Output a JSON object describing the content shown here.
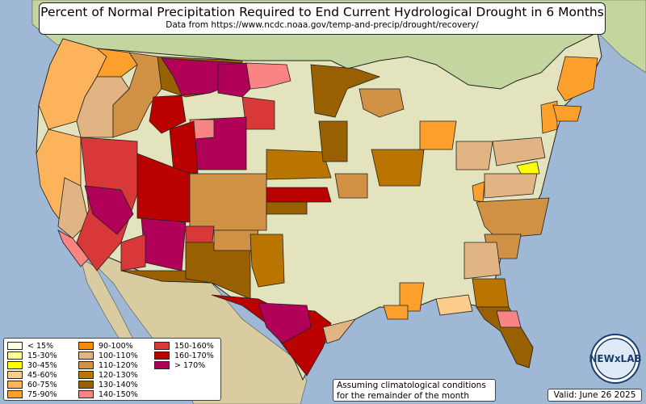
{
  "title": "Percent of Normal Precipitation Required to End Current Hydrological Drought in 6 Months",
  "subtitle": "Data from https://www.ncdc.noaa.gov/temp-and-precip/drought/recovery/",
  "note": {
    "line1": "Assuming climatological conditions",
    "line2": "for the remainder of the month"
  },
  "valid": "Valid: June 26 2025",
  "logo_text": "NEWxLAB",
  "colors": {
    "water": "#9fb8d6",
    "land_lowland": "#c9d8a4",
    "land_highland": "#d8cfa8",
    "canada_land": "#c4d6a0",
    "mexico_land": "#d9cca0",
    "land_us_base": "#e3e3bd",
    "border": "#222222"
  },
  "legend": [
    {
      "label": "< 15%",
      "color": "#ffffe6"
    },
    {
      "label": "15-30%",
      "color": "#ffff99"
    },
    {
      "label": "30-45%",
      "color": "#ffff00"
    },
    {
      "label": "45-60%",
      "color": "#fccc8a"
    },
    {
      "label": "60-75%",
      "color": "#fdb35c"
    },
    {
      "label": "75-90%",
      "color": "#fca02b"
    },
    {
      "label": "90-100%",
      "color": "#f98a06"
    },
    {
      "label": "100-110%",
      "color": "#e1b483"
    },
    {
      "label": "110-120%",
      "color": "#d19145"
    },
    {
      "label": "120-130%",
      "color": "#b97500"
    },
    {
      "label": "130-140%",
      "color": "#996000"
    },
    {
      "label": "140-150%",
      "color": "#f88484"
    },
    {
      "label": "150-160%",
      "color": "#d93838"
    },
    {
      "label": "160-170%",
      "color": "#bb0000"
    },
    {
      "label": "> 170%",
      "color": "#b00058"
    }
  ]
}
